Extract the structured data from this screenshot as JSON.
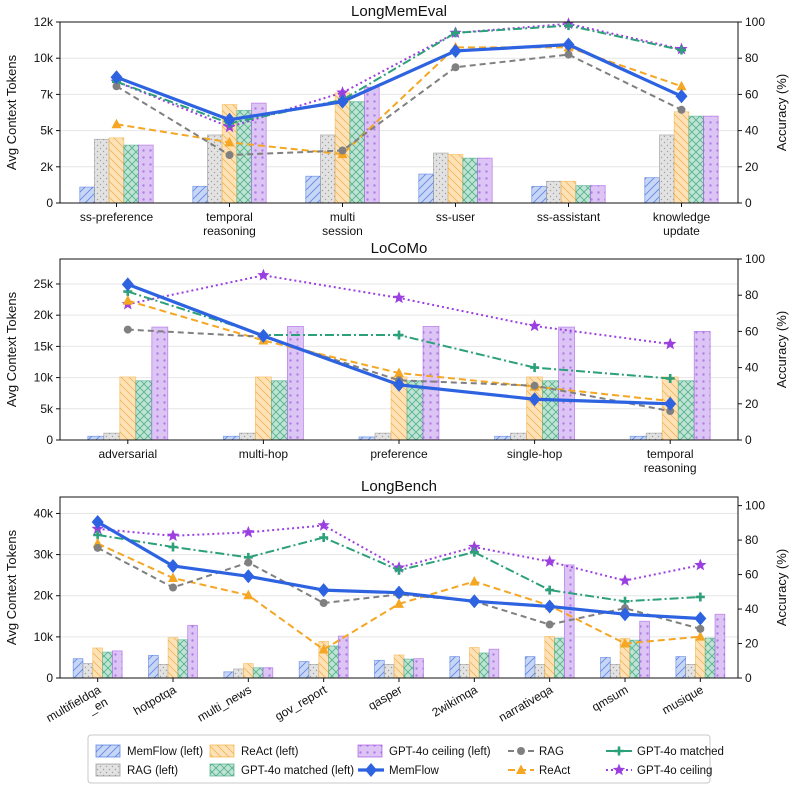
{
  "colors": {
    "memflow": "#2d62e0",
    "rag": "#808080",
    "react": "#f5a623",
    "gpt_matched": "#2ca07a",
    "gpt_ceiling": "#9b3fe0"
  },
  "legend": {
    "bar_memflow": "MemFlow (left)",
    "bar_rag": "RAG (left)",
    "bar_react": "ReAct (left)",
    "bar_gpt_matched": "GPT-4o matched (left)",
    "bar_gpt_ceiling": "GPT-4o ceiling (left)",
    "line_memflow": "MemFlow",
    "line_rag": "RAG",
    "line_react": "ReAct",
    "line_gpt_matched": "GPT-4o matched",
    "line_gpt_ceiling": "GPT-4o ceiling"
  },
  "chart_data": [
    {
      "type": "bar+line",
      "title": "LongMemEval",
      "ylabel_left": "Avg Context Tokens",
      "ylabel_right": "Accuracy (%)",
      "ylim_left": [
        0,
        12500
      ],
      "yticks_left": [
        0,
        2500,
        5000,
        7500,
        10000,
        12500
      ],
      "ytick_labels_left": [
        "0",
        "2k",
        "5k",
        "7k",
        "10k",
        "12k"
      ],
      "ylim_right": [
        0,
        100
      ],
      "yticks_right": [
        0,
        20,
        40,
        60,
        80,
        100
      ],
      "categories": [
        [
          "ss-preference"
        ],
        [
          "temporal",
          "reasoning"
        ],
        [
          "multi",
          "session"
        ],
        [
          "ss-user"
        ],
        [
          "ss-assistant"
        ],
        [
          "knowledge",
          "update"
        ]
      ],
      "bars": {
        "memflow": [
          1100,
          1150,
          1850,
          2000,
          1150,
          1750
        ],
        "rag": [
          4400,
          4700,
          4700,
          3450,
          1500,
          4700
        ],
        "react": [
          4500,
          6800,
          7600,
          3350,
          1500,
          6300
        ],
        "gpt_matched": [
          4000,
          6400,
          7000,
          3100,
          1200,
          6000
        ],
        "gpt_ceiling": [
          4000,
          6900,
          8000,
          3100,
          1200,
          6000
        ]
      },
      "lines": {
        "memflow": [
          69.5,
          46,
          56,
          84,
          87.5,
          59
        ],
        "rag": [
          64.5,
          26.5,
          29,
          75,
          82,
          51.5
        ],
        "react": [
          43.5,
          33.5,
          27,
          86,
          86,
          64.5
        ],
        "gpt_matched": [
          67,
          44,
          57,
          94,
          98,
          84.5
        ],
        "gpt_ceiling": [
          67,
          42,
          61,
          94,
          99,
          85
        ]
      }
    },
    {
      "type": "bar+line",
      "title": "LoCoMo",
      "ylabel_left": "Avg Context Tokens",
      "ylabel_right": "Accuracy (%)",
      "ylim_left": [
        0,
        29000
      ],
      "yticks_left": [
        0,
        5000,
        10000,
        15000,
        20000,
        25000
      ],
      "ytick_labels_left": [
        "0",
        "5k",
        "10k",
        "15k",
        "20k",
        "25k"
      ],
      "ylim_right": [
        0,
        100
      ],
      "yticks_right": [
        0,
        20,
        40,
        60,
        80,
        100
      ],
      "categories": [
        [
          "adversarial"
        ],
        [
          "multi-hop"
        ],
        [
          "preference"
        ],
        [
          "single-hop"
        ],
        [
          "temporal",
          "reasoning"
        ]
      ],
      "bars": {
        "memflow": [
          600,
          600,
          500,
          600,
          600
        ],
        "rag": [
          1100,
          1100,
          1100,
          1100,
          1100
        ],
        "react": [
          10100,
          10100,
          10100,
          10100,
          10100
        ],
        "gpt_matched": [
          9500,
          9500,
          9500,
          9500,
          9500
        ],
        "gpt_ceiling": [
          18100,
          18200,
          18200,
          18100,
          17400
        ]
      },
      "lines": {
        "memflow": [
          86,
          57.5,
          30.5,
          22.5,
          20
        ],
        "rag": [
          61,
          57,
          33,
          30,
          16
        ],
        "react": [
          77,
          55,
          37,
          29.5,
          21.5
        ],
        "gpt_matched": [
          82,
          58,
          58,
          40,
          34
        ],
        "gpt_ceiling": [
          75,
          91,
          78.5,
          63,
          53
        ]
      }
    },
    {
      "type": "bar+line",
      "title": "LongBench",
      "ylabel_left": "Avg Context Tokens",
      "ylabel_right": "Accuracy (%)",
      "ylim_left": [
        0,
        44000
      ],
      "yticks_left": [
        0,
        10000,
        20000,
        30000,
        40000
      ],
      "ytick_labels_left": [
        "0",
        "10k",
        "20k",
        "30k",
        "40k"
      ],
      "ylim_right": [
        0,
        105
      ],
      "yticks_right": [
        0,
        20,
        40,
        60,
        80,
        100
      ],
      "categories": [
        [
          "multifieldqa",
          "_en"
        ],
        [
          "hotpotqa"
        ],
        [
          "multi_news"
        ],
        [
          "gov_report"
        ],
        [
          "qasper"
        ],
        [
          "2wikimqa"
        ],
        [
          "narrativeqa"
        ],
        [
          "qmsum"
        ],
        [
          "musique"
        ]
      ],
      "bars": {
        "memflow": [
          4700,
          5500,
          1500,
          4000,
          4300,
          5200,
          5200,
          5000,
          5200
        ],
        "rag": [
          3500,
          3300,
          2200,
          3300,
          3300,
          3300,
          3300,
          3300,
          3300
        ],
        "react": [
          7300,
          9800,
          3500,
          8900,
          5600,
          7400,
          10100,
          9600,
          9600
        ],
        "gpt_matched": [
          6300,
          9300,
          2500,
          7800,
          4600,
          6100,
          9700,
          9200,
          9700
        ],
        "gpt_ceiling": [
          6600,
          12800,
          2500,
          10200,
          4700,
          7000,
          27500,
          13800,
          15500
        ]
      },
      "lines": {
        "memflow": [
          90.5,
          65,
          59,
          51,
          49.5,
          44.5,
          41.5,
          37,
          34.5
        ],
        "rag": [
          75.5,
          52.5,
          67,
          43.5,
          48.5,
          44.5,
          31,
          40.5,
          28.5
        ],
        "react": [
          78,
          58,
          48,
          16.5,
          43,
          56,
          42,
          20,
          24
        ],
        "gpt_matched": [
          83,
          76,
          70,
          81.5,
          62.5,
          73,
          51,
          44.5,
          47
        ],
        "gpt_ceiling": [
          86.5,
          82.5,
          84.5,
          88.5,
          64,
          76,
          67.5,
          56.5,
          65.5
        ]
      }
    }
  ]
}
